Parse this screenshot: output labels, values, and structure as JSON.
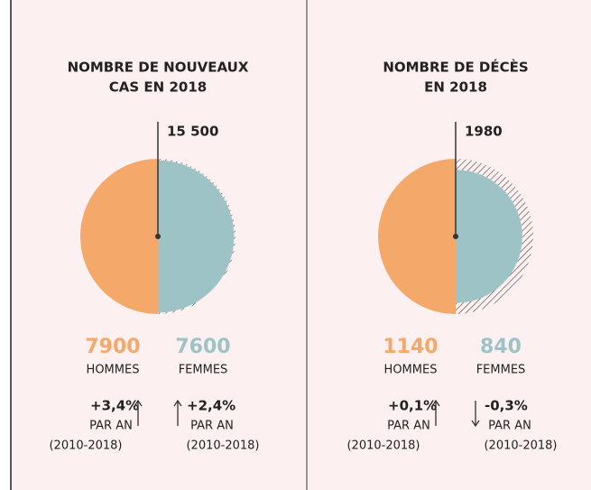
{
  "chart_data": [
    {
      "type": "pie",
      "title": [
        "NOMBRE DE NOUVEAUX",
        "CAS EN 2018"
      ],
      "total": {
        "value": 15500,
        "label": "15 500"
      },
      "categories": [
        "HOMMES",
        "FEMMES"
      ],
      "values": [
        7900,
        7600
      ],
      "colors": [
        "#f4a96a",
        "#9dc3c6"
      ],
      "trends": [
        {
          "value": 3.4,
          "label": "+3,4%"
        },
        {
          "value": 2.4,
          "label": "+2,4%"
        }
      ],
      "trend_directions": [
        "up",
        "up"
      ],
      "trend_unit": "PAR AN",
      "trend_period": "(2010-2018)"
    },
    {
      "type": "pie",
      "title": [
        "NOMBRE DE DÉCÈS",
        "EN 2018"
      ],
      "total": 1980,
      "categories": [
        "HOMMES",
        "FEMMES"
      ],
      "values": [
        1140,
        840
      ],
      "colors": [
        "#f4a96a",
        "#9dc3c6"
      ],
      "trends": [
        {
          "value": 0.1,
          "label": "+0,1%"
        },
        {
          "value": -0.3,
          "label": "-0,3%"
        }
      ],
      "trend_directions": [
        "up",
        "down"
      ],
      "trend_unit": "PAR AN",
      "trend_period": "(2010-2018)"
    }
  ]
}
